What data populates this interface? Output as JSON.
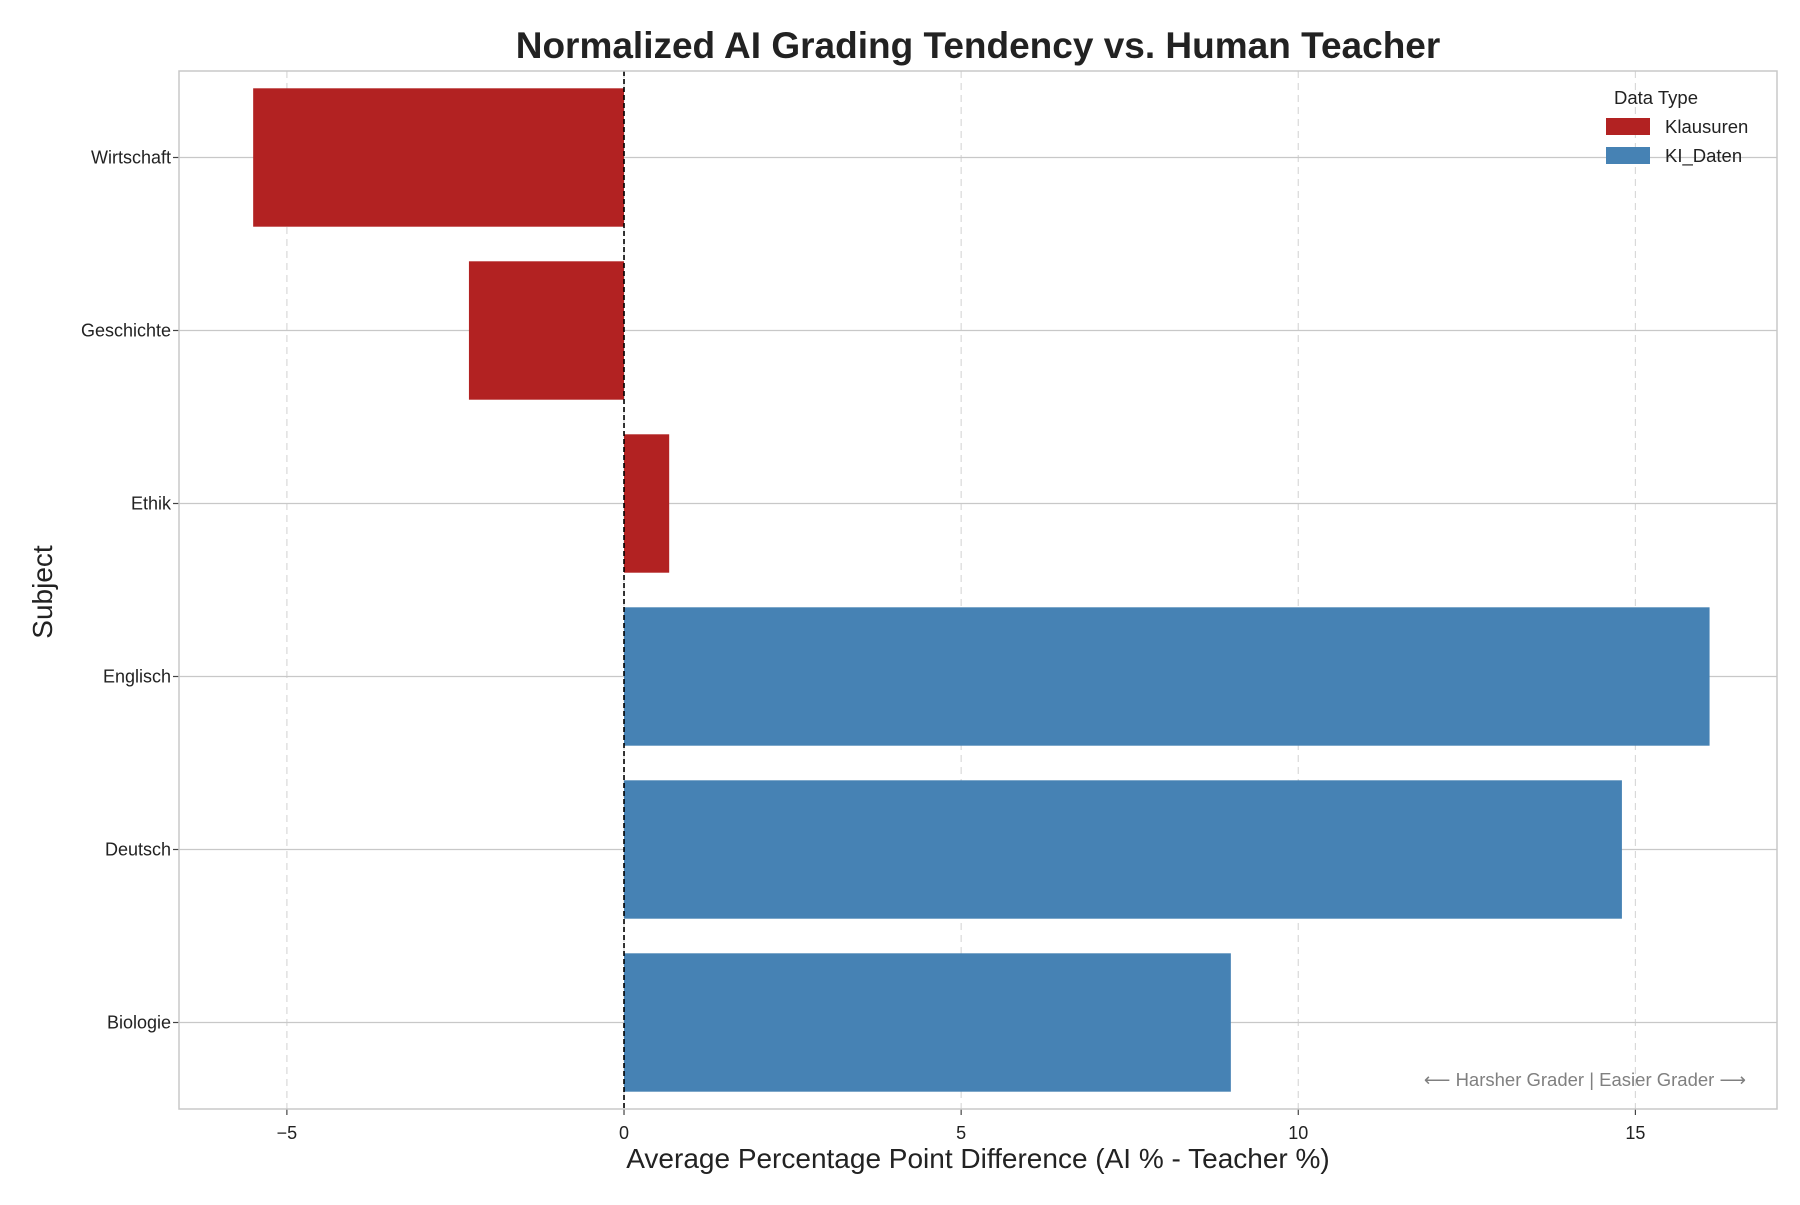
{
  "chart_data": {
    "type": "bar",
    "orientation": "horizontal",
    "title": "Normalized AI Grading Tendency vs. Human Teacher",
    "xlabel": "Average Percentage Point Difference (AI % - Teacher %)",
    "ylabel": "Subject",
    "categories": [
      "Wirtschaft",
      "Geschichte",
      "Ethik",
      "Englisch",
      "Deutsch",
      "Biologie"
    ],
    "values": [
      -5.5,
      -2.3,
      0.67,
      16.1,
      14.8,
      9.0
    ],
    "series_membership": [
      "Klausuren",
      "Klausuren",
      "Klausuren",
      "KI_Daten",
      "KI_Daten",
      "KI_Daten"
    ],
    "xlim": [
      -6.6,
      17.1
    ],
    "xticks": [
      -5,
      0,
      5,
      10,
      15
    ],
    "xtick_labels": [
      "−5",
      "0",
      "5",
      "10",
      "15"
    ],
    "zero_line": "dashed black vertical line at 0",
    "grid": true,
    "legend": {
      "title": "Data Type",
      "placement": "top-right",
      "entries": [
        {
          "name": "Klausuren",
          "color": "#b22222"
        },
        {
          "name": "KI_Daten",
          "color": "#4682b4"
        }
      ]
    },
    "annotation": "⟵ Harsher Grader | Easier Grader ⟶"
  },
  "colors": {
    "Klausuren": "#b22222",
    "KI_Daten": "#4682b4",
    "grid": "#d9d9d9",
    "axis": "#c8c8c8",
    "annotation": "#808080",
    "text": "#222222"
  }
}
